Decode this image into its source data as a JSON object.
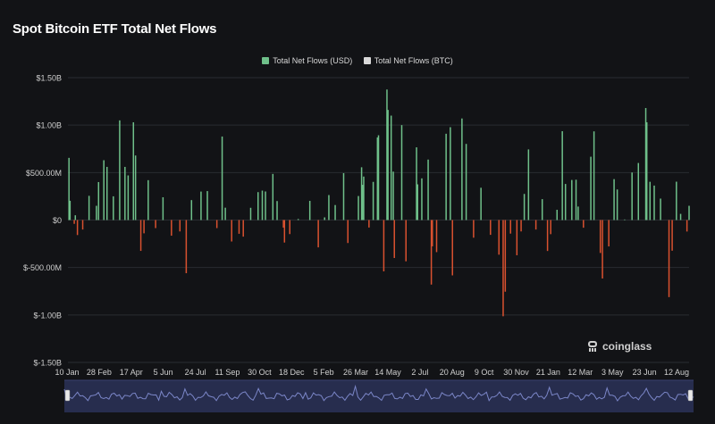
{
  "title": "Spot Bitcoin ETF Total Net Flows",
  "legend": [
    {
      "label": "Total Net Flows (USD)",
      "color": "#6fc08a"
    },
    {
      "label": "Total Net Flows (BTC)",
      "color": "#d9d9d9"
    }
  ],
  "watermark": "coinglass",
  "colors": {
    "positive": "#6fc08a",
    "negative": "#d9512f",
    "navigator_line": "#7b86c8",
    "navigator_fill": "#2c3358"
  },
  "chart_data": {
    "type": "bar",
    "title": "Spot Bitcoin ETF Total Net Flows",
    "xlabel": "",
    "ylabel": "",
    "y_tick_labels": [
      "$1.50B",
      "$1.00B",
      "$500.00M",
      "$0",
      "$-500.00M",
      "$-1.00B",
      "$-1.50B"
    ],
    "y_ticks": [
      1500000000,
      1000000000,
      500000000,
      0,
      -500000000,
      -1000000000,
      -1500000000
    ],
    "ylim": [
      -1500000000,
      1500000000
    ],
    "x_tick_labels": [
      "10 Jan",
      "28 Feb",
      "17 Apr",
      "5 Jun",
      "24 Jul",
      "11 Sep",
      "30 Oct",
      "18 Dec",
      "5 Feb",
      "26 Mar",
      "14 May",
      "2 Jul",
      "20 Aug",
      "9 Oct",
      "30 Nov",
      "21 Jan",
      "12 Mar",
      "3 May",
      "23 Jun",
      "12 Aug"
    ],
    "x_range": [
      "2024-01-10",
      "2025-08-20"
    ],
    "grid": {
      "horizontal": true,
      "vertical": false
    },
    "legend_position": "top-center",
    "series": [
      {
        "name": "Total Net Flows (USD)",
        "unit": "USD",
        "values": [
          {
            "date": "2024-01-11",
            "value": 655000000
          },
          {
            "date": "2024-01-12",
            "value": 203000000
          },
          {
            "date": "2024-01-16",
            "value": -40000000
          },
          {
            "date": "2024-01-17",
            "value": 50000000
          },
          {
            "date": "2024-01-19",
            "value": -158000000
          },
          {
            "date": "2024-01-24",
            "value": -100000000
          },
          {
            "date": "2024-01-30",
            "value": 255000000
          },
          {
            "date": "2024-02-06",
            "value": 150000000
          },
          {
            "date": "2024-02-08",
            "value": 400000000
          },
          {
            "date": "2024-02-13",
            "value": 630000000
          },
          {
            "date": "2024-02-16",
            "value": 560000000
          },
          {
            "date": "2024-02-22",
            "value": 250000000
          },
          {
            "date": "2024-02-28",
            "value": 1050000000
          },
          {
            "date": "2024-03-04",
            "value": 560000000
          },
          {
            "date": "2024-03-07",
            "value": 470000000
          },
          {
            "date": "2024-03-12",
            "value": 1030000000
          },
          {
            "date": "2024-03-14",
            "value": 680000000
          },
          {
            "date": "2024-03-19",
            "value": -325000000
          },
          {
            "date": "2024-03-22",
            "value": -140000000
          },
          {
            "date": "2024-03-26",
            "value": 420000000
          },
          {
            "date": "2024-04-02",
            "value": -85000000
          },
          {
            "date": "2024-04-09",
            "value": 240000000
          },
          {
            "date": "2024-04-17",
            "value": -165000000
          },
          {
            "date": "2024-04-25",
            "value": -120000000
          },
          {
            "date": "2024-05-01",
            "value": -560000000
          },
          {
            "date": "2024-05-06",
            "value": 210000000
          },
          {
            "date": "2024-05-15",
            "value": 300000000
          },
          {
            "date": "2024-05-21",
            "value": 305000000
          },
          {
            "date": "2024-05-30",
            "value": -85000000
          },
          {
            "date": "2024-06-04",
            "value": 880000000
          },
          {
            "date": "2024-06-07",
            "value": 130000000
          },
          {
            "date": "2024-06-13",
            "value": -226000000
          },
          {
            "date": "2024-06-20",
            "value": -145000000
          },
          {
            "date": "2024-06-24",
            "value": -175000000
          },
          {
            "date": "2024-07-01",
            "value": 129000000
          },
          {
            "date": "2024-07-08",
            "value": 294000000
          },
          {
            "date": "2024-07-12",
            "value": 310000000
          },
          {
            "date": "2024-07-15",
            "value": 301000000
          },
          {
            "date": "2024-07-22",
            "value": 486000000
          },
          {
            "date": "2024-07-26",
            "value": 200000000
          },
          {
            "date": "2024-08-01",
            "value": -80000000
          },
          {
            "date": "2024-08-02",
            "value": -237000000
          },
          {
            "date": "2024-08-07",
            "value": -148000000
          },
          {
            "date": "2024-08-15",
            "value": 11000000
          },
          {
            "date": "2024-08-26",
            "value": 202000000
          },
          {
            "date": "2024-09-03",
            "value": -288000000
          },
          {
            "date": "2024-09-09",
            "value": 28000000
          },
          {
            "date": "2024-09-13",
            "value": 263000000
          },
          {
            "date": "2024-09-19",
            "value": 158000000
          },
          {
            "date": "2024-09-27",
            "value": 494000000
          },
          {
            "date": "2024-10-01",
            "value": -242000000
          },
          {
            "date": "2024-10-11",
            "value": 253000000
          },
          {
            "date": "2024-10-14",
            "value": 556000000
          },
          {
            "date": "2024-10-15",
            "value": 371000000
          },
          {
            "date": "2024-10-16",
            "value": 458000000
          },
          {
            "date": "2024-10-21",
            "value": -79000000
          },
          {
            "date": "2024-10-25",
            "value": 402000000
          },
          {
            "date": "2024-10-29",
            "value": 870000000
          },
          {
            "date": "2024-10-30",
            "value": 893000000
          },
          {
            "date": "2024-11-04",
            "value": -541000000
          },
          {
            "date": "2024-11-07",
            "value": 1375000000
          },
          {
            "date": "2024-11-08",
            "value": 1160000000
          },
          {
            "date": "2024-11-11",
            "value": 1100000000
          },
          {
            "date": "2024-11-13",
            "value": 510000000
          },
          {
            "date": "2024-11-14",
            "value": -400000000
          },
          {
            "date": "2024-11-21",
            "value": 1000000000
          },
          {
            "date": "2024-11-25",
            "value": -435000000
          },
          {
            "date": "2024-12-05",
            "value": 766000000
          },
          {
            "date": "2024-12-06",
            "value": 376000000
          },
          {
            "date": "2024-12-10",
            "value": 439000000
          },
          {
            "date": "2024-12-16",
            "value": 637000000
          },
          {
            "date": "2024-12-19",
            "value": -680000000
          },
          {
            "date": "2024-12-20",
            "value": -277000000
          },
          {
            "date": "2024-12-24",
            "value": -338000000
          },
          {
            "date": "2025-01-02",
            "value": 909000000
          },
          {
            "date": "2025-01-06",
            "value": 978000000
          },
          {
            "date": "2025-01-08",
            "value": -583000000
          },
          {
            "date": "2025-01-17",
            "value": 1070000000
          },
          {
            "date": "2025-01-21",
            "value": 802000000
          },
          {
            "date": "2025-01-28",
            "value": -186000000
          },
          {
            "date": "2025-02-04",
            "value": 340000000
          },
          {
            "date": "2025-02-13",
            "value": -156000000
          },
          {
            "date": "2025-02-21",
            "value": -365000000
          },
          {
            "date": "2025-02-25",
            "value": -1014000000
          },
          {
            "date": "2025-02-27",
            "value": -755000000
          },
          {
            "date": "2025-03-04",
            "value": -143000000
          },
          {
            "date": "2025-03-10",
            "value": -371000000
          },
          {
            "date": "2025-03-14",
            "value": -120000000
          },
          {
            "date": "2025-03-17",
            "value": 275000000
          },
          {
            "date": "2025-03-21",
            "value": 744000000
          },
          {
            "date": "2025-03-28",
            "value": -100000000
          },
          {
            "date": "2025-04-03",
            "value": 220000000
          },
          {
            "date": "2025-04-08",
            "value": -326000000
          },
          {
            "date": "2025-04-11",
            "value": -149000000
          },
          {
            "date": "2025-04-17",
            "value": 108000000
          },
          {
            "date": "2025-04-22",
            "value": 936000000
          },
          {
            "date": "2025-04-25",
            "value": 380000000
          },
          {
            "date": "2025-05-01",
            "value": 422000000
          },
          {
            "date": "2025-05-05",
            "value": 425000000
          },
          {
            "date": "2025-05-07",
            "value": 142000000
          },
          {
            "date": "2025-05-12",
            "value": -81000000
          },
          {
            "date": "2025-05-19",
            "value": 667000000
          },
          {
            "date": "2025-05-22",
            "value": 934000000
          },
          {
            "date": "2025-05-28",
            "value": -347000000
          },
          {
            "date": "2025-05-30",
            "value": -616000000
          },
          {
            "date": "2025-06-05",
            "value": -278000000
          },
          {
            "date": "2025-06-10",
            "value": 431000000
          },
          {
            "date": "2025-06-13",
            "value": 322000000
          },
          {
            "date": "2025-06-20",
            "value": 6000000
          },
          {
            "date": "2025-06-27",
            "value": 501000000
          },
          {
            "date": "2025-07-03",
            "value": 601000000
          },
          {
            "date": "2025-07-10",
            "value": 1180000000
          },
          {
            "date": "2025-07-11",
            "value": 1030000000
          },
          {
            "date": "2025-07-14",
            "value": 403000000
          },
          {
            "date": "2025-07-18",
            "value": 363000000
          },
          {
            "date": "2025-07-24",
            "value": 226000000
          },
          {
            "date": "2025-08-01",
            "value": -812000000
          },
          {
            "date": "2025-08-04",
            "value": -323000000
          },
          {
            "date": "2025-08-08",
            "value": 404000000
          },
          {
            "date": "2025-08-12",
            "value": 65000000
          },
          {
            "date": "2025-08-18",
            "value": -121000000
          },
          {
            "date": "2025-08-20",
            "value": 150000000
          }
        ]
      }
    ]
  }
}
